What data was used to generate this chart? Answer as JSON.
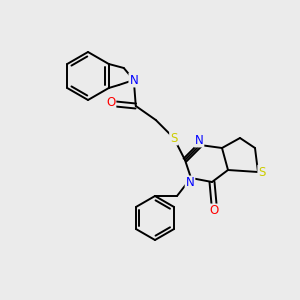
{
  "background_color": "#ebebeb",
  "atom_colors": {
    "N": "#0000ff",
    "O": "#ff0000",
    "S": "#cccc00"
  },
  "lw": 1.4,
  "fs": 8.5,
  "figsize": [
    3.0,
    3.0
  ],
  "dpi": 100
}
